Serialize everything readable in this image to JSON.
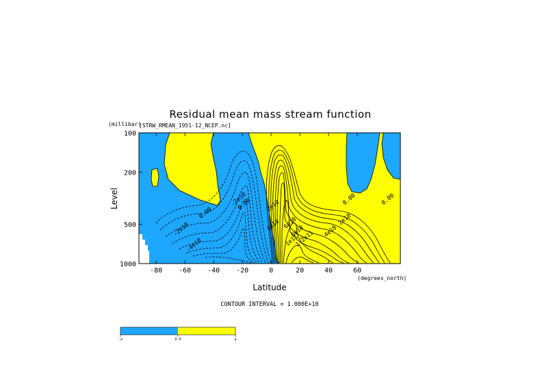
{
  "chart_data": {
    "type": "contour",
    "title": "Residual mean mass stream function",
    "subtitle": "[STRW_RMEAN_1951-12_NCEP.nc]",
    "xlabel": "Latitude",
    "xunits": "(degrees_north)",
    "ylabel": "Level",
    "yunits": "(millibar)",
    "xlim": [
      -92,
      90
    ],
    "ylim": [
      100,
      1000
    ],
    "yscale": "log-pressure",
    "xticks": [
      "-80",
      "-60",
      "-40",
      "-20",
      "0",
      "20",
      "40",
      "60"
    ],
    "xtick_values": [
      -80,
      -60,
      -40,
      -20,
      0,
      20,
      40,
      60
    ],
    "yticks": [
      "100",
      "200",
      "500",
      "1000"
    ],
    "ytick_values": [
      100,
      200,
      500,
      1000
    ],
    "contour_interval_text": "CONTOUR INTERVAL = 1.000E+10",
    "contour_labels": [
      {
        "text": "0.00",
        "x": -45,
        "y": 420
      },
      {
        "text": "0.00",
        "x": -18,
        "y": 360
      },
      {
        "text": "0.00",
        "x": 55,
        "y": 330
      },
      {
        "text": "0.00",
        "x": 82,
        "y": 330
      },
      {
        "text": "-2e10",
        "x": -22,
        "y": 330
      },
      {
        "text": "-2e10",
        "x": -62,
        "y": 560
      },
      {
        "text": "-4e10",
        "x": -53,
        "y": 740
      },
      {
        "text": "2e10",
        "x": 2,
        "y": 370
      },
      {
        "text": "4e10",
        "x": 2,
        "y": 520
      },
      {
        "text": "2e10",
        "x": 52,
        "y": 470
      },
      {
        "text": "4e10",
        "x": 42,
        "y": 580
      },
      {
        "text": "6e10",
        "x": 14,
        "y": 500
      },
      {
        "text": "8e10",
        "x": 19,
        "y": 580
      },
      {
        "text": "1e11",
        "x": 15,
        "y": 680
      },
      {
        "text": "1.2e11",
        "x": 24,
        "y": 660
      }
    ],
    "fill_negative": "#1ea7ff",
    "fill_positive": "#ffff00",
    "colorbar": {
      "labels": [
        "-a",
        "0.0",
        "a"
      ],
      "colors": [
        "#1ea7ff",
        "#ffff00"
      ]
    }
  }
}
